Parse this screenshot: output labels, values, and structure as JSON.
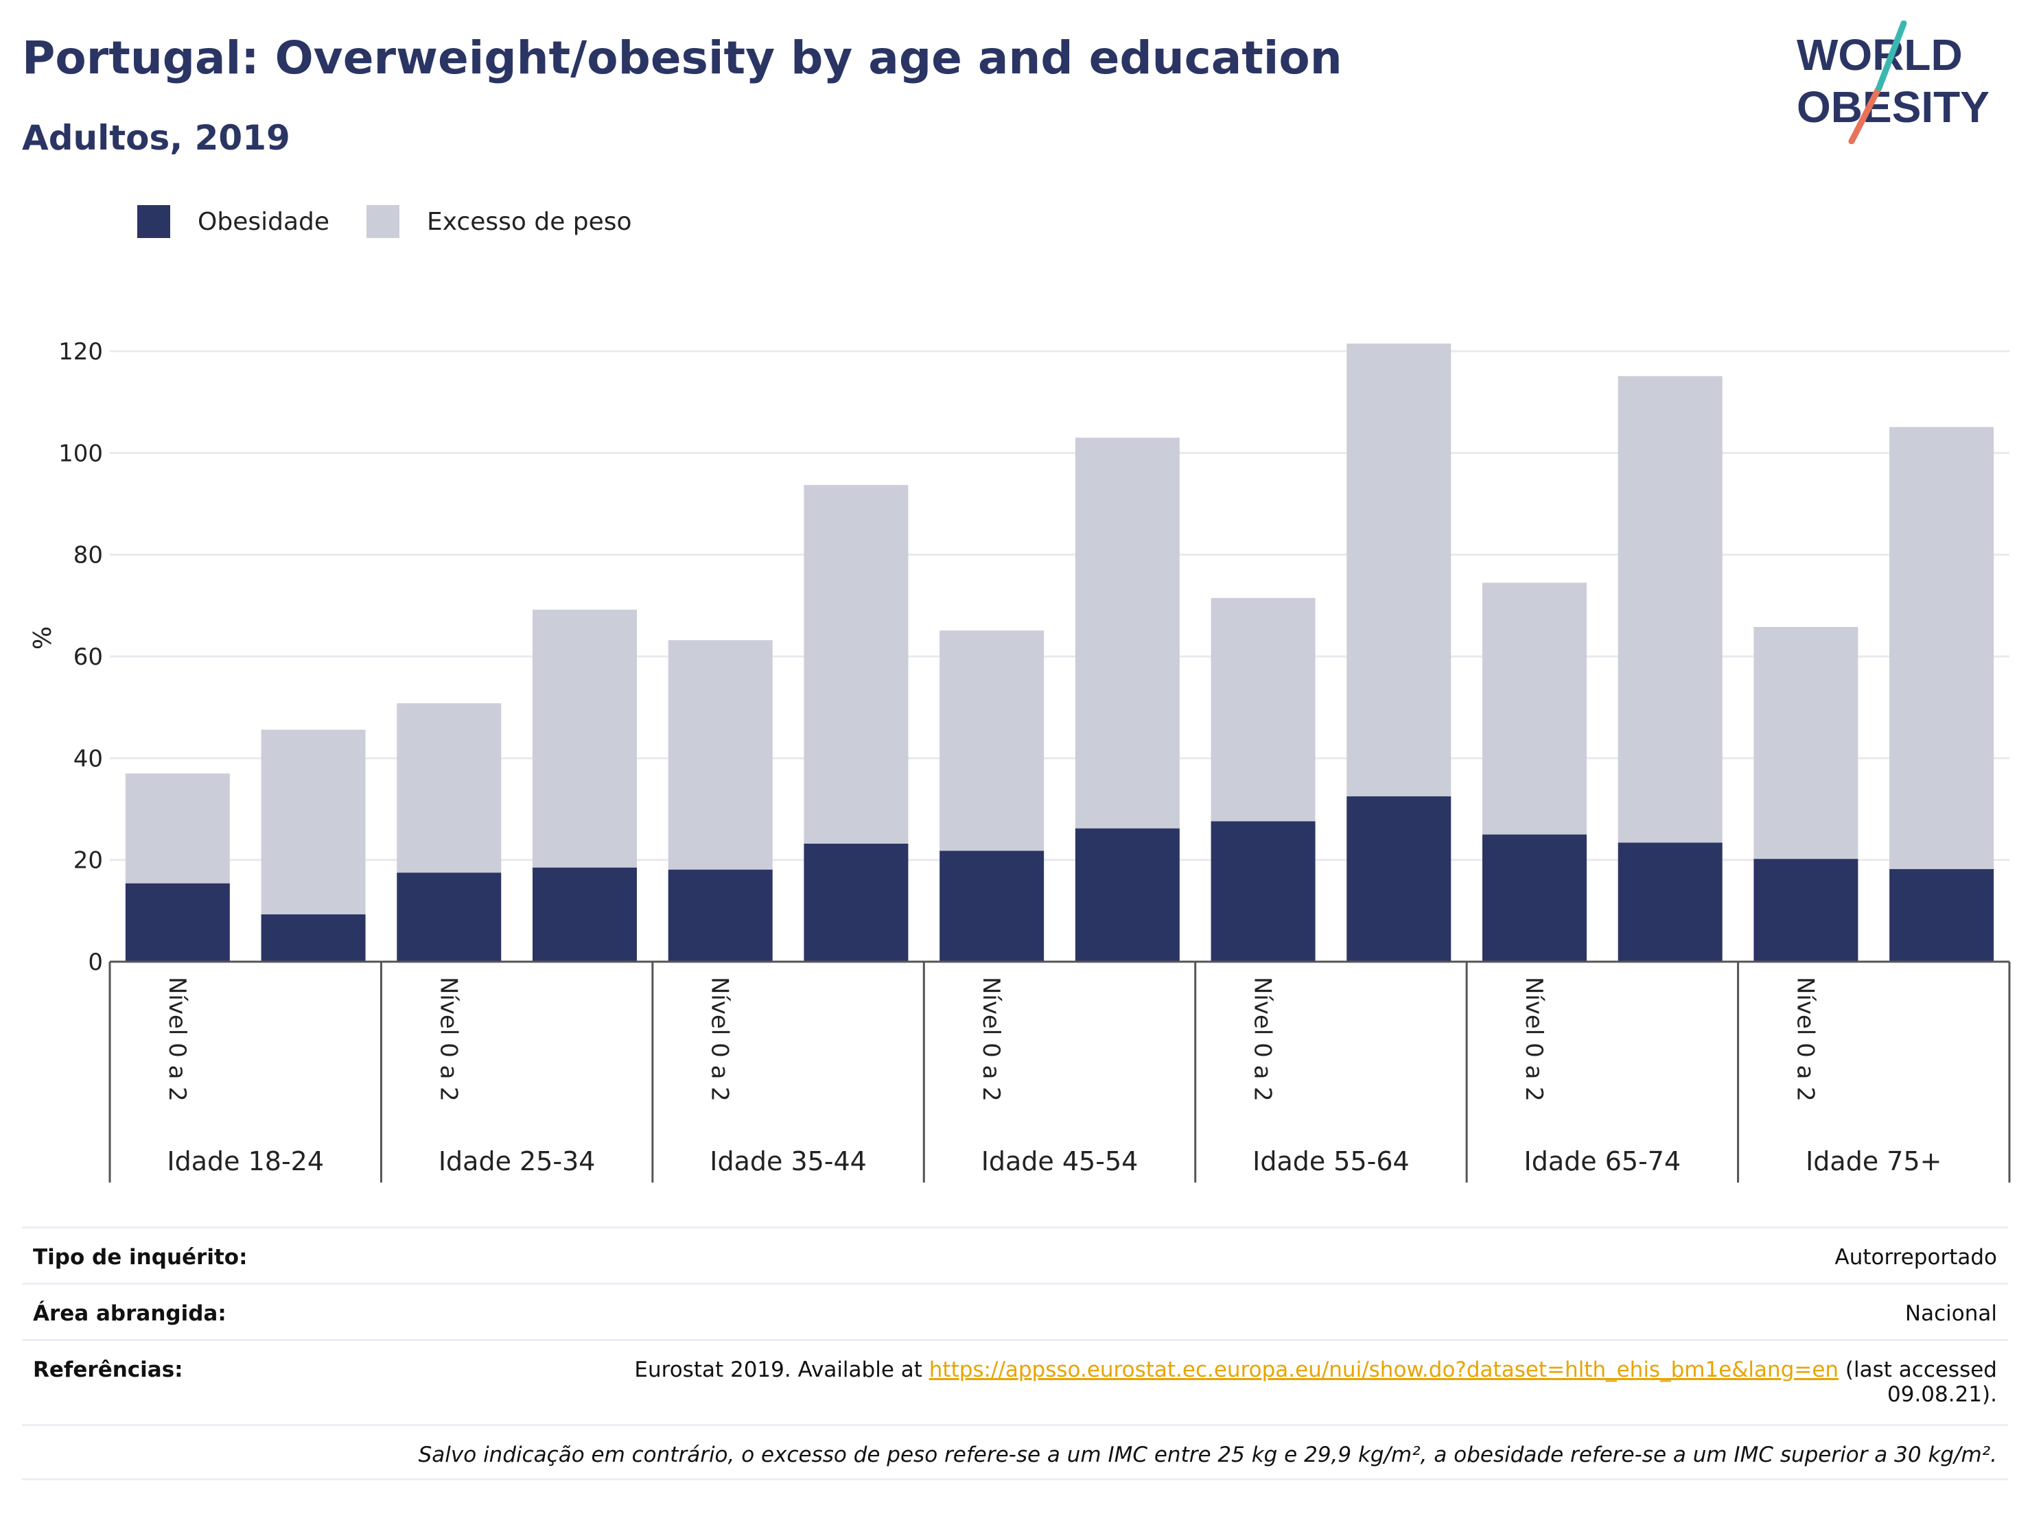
{
  "title": "Portugal: Overweight/obesity by age and education",
  "subtitle": "Adultos, 2019",
  "logo": {
    "line1": "WORLD",
    "line2": "OBESITY"
  },
  "colors": {
    "obesity": "#2a3564",
    "overweight": "#cbcdd8",
    "accent_teal": "#3ab8b0",
    "accent_red": "#e8735a",
    "grid": "#e8e9ef"
  },
  "legend": {
    "obesity": "Obesidade",
    "overweight": "Excesso de peso"
  },
  "chart_data": {
    "type": "bar",
    "stacked": true,
    "ylabel": "%",
    "ylim": [
      0,
      120
    ],
    "yticks": [
      0,
      20,
      40,
      60,
      80,
      100,
      120
    ],
    "grid": true,
    "legend_position": "top-left",
    "groups": [
      "Idade 18-24",
      "Idade 25-34",
      "Idade 35-44",
      "Idade 45-54",
      "Idade 55-64",
      "Idade 65-74",
      "Idade 75+"
    ],
    "subcategories": [
      "Nível 0 a 2",
      ""
    ],
    "series": [
      {
        "name": "Obesidade",
        "values": [
          15.4,
          9.3,
          17.5,
          18.5,
          18.1,
          23.2,
          21.8,
          26.2,
          27.6,
          32.5,
          25.0,
          23.4,
          20.2,
          18.2
        ]
      },
      {
        "name": "Excesso de peso",
        "values": [
          21.6,
          36.3,
          33.3,
          50.7,
          45.1,
          70.5,
          43.3,
          76.8,
          43.9,
          89.0,
          49.5,
          91.7,
          45.6,
          86.9
        ]
      }
    ]
  },
  "info": {
    "survey_label": "Tipo de inquérito:",
    "survey_value": "Autorreportado",
    "area_label": "Área abrangida:",
    "area_value": "Nacional",
    "refs_label": "Referências:",
    "refs_prefix": "Eurostat 2019. Available at ",
    "refs_link": "https://appsso.eurostat.ec.europa.eu/nui/show.do?dataset=hlth_ehis_bm1e&lang=en",
    "refs_suffix": " (last accessed",
    "refs_date": "09.08.21).",
    "note": "Salvo indicação em contrário, o excesso de peso refere-se a um IMC entre 25 kg e 29,9 kg/m², a obesidade refere-se a um IMC superior a 30 kg/m²."
  }
}
